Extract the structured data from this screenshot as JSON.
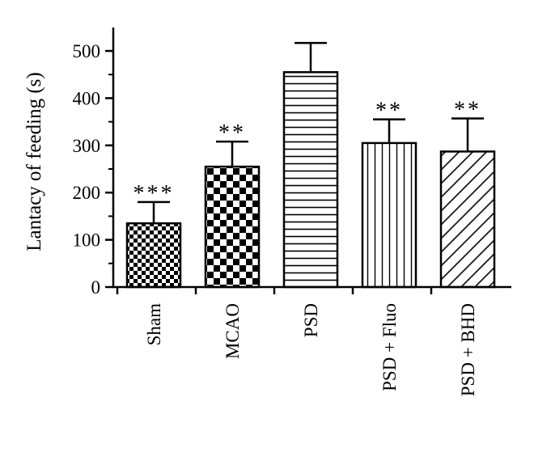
{
  "chart_data": {
    "type": "bar",
    "ylabel": "Lantacy of feeding (s)",
    "xlabel": "",
    "ylim": [
      0,
      550
    ],
    "yticks": [
      0,
      100,
      200,
      300,
      400,
      500
    ],
    "categories": [
      "Sham",
      "MCAO",
      "PSD",
      "PSD + Fluo",
      "PSD + BHD"
    ],
    "values": [
      135,
      255,
      455,
      305,
      287
    ],
    "error_upper": [
      45,
      53,
      62,
      50,
      70
    ],
    "significance": [
      "***",
      "**",
      "",
      "**",
      "**"
    ],
    "patterns": [
      "fine-checker",
      "coarse-checker",
      "horizontal-lines",
      "vertical-lines",
      "diagonal-lines"
    ],
    "grid": false,
    "legend": "none"
  }
}
